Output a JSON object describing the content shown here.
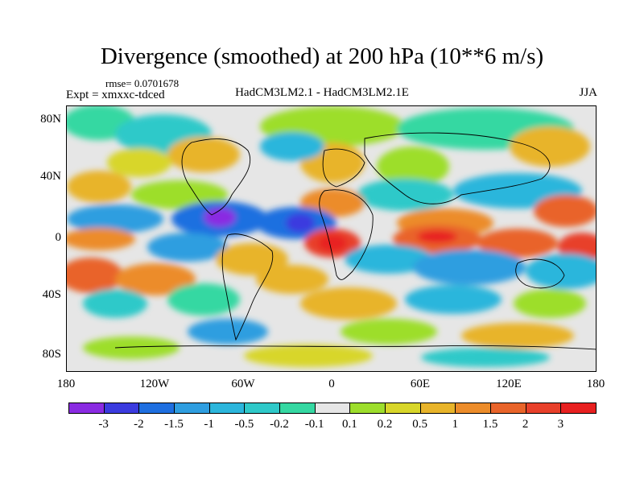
{
  "title": "Divergence (smoothed) at 200 hPa (10**6 m/s)",
  "rmse_text": "rmse= 0.0701678",
  "expt_text": "Expt = xmxxc-tdced",
  "center_text": "HadCM3LM2.1 - HadCM3LM2.1E",
  "season_text": "JJA",
  "y_axis": {
    "labels": [
      "80N",
      "40N",
      "0",
      "40S",
      "80S"
    ]
  },
  "x_axis": {
    "labels": [
      "180",
      "120W",
      "60W",
      "0",
      "60E",
      "120E",
      "180"
    ]
  },
  "colorbar": {
    "labels": [
      "-3",
      "-2",
      "-1.5",
      "-1",
      "-0.5",
      "-0.2",
      "-0.1",
      "0.1",
      "0.2",
      "0.5",
      "1",
      "1.5",
      "2",
      "3"
    ],
    "colors": [
      "#8a2be2",
      "#3b3bdf",
      "#1f6fe0",
      "#2f9ee0",
      "#2cb6dc",
      "#2fc9c9",
      "#35d8a2",
      "#e6e6e6",
      "#9dde2c",
      "#d8d62a",
      "#e8b42a",
      "#ec8c2a",
      "#e9642a",
      "#e8402a",
      "#e82020"
    ]
  }
}
